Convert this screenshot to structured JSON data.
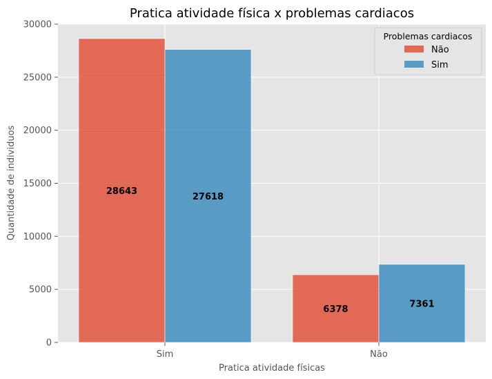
{
  "chart_data": {
    "type": "bar",
    "title": "Pratica atividade física x problemas cardiacos",
    "xlabel": "Pratica atividade físicas",
    "ylabel": "Quantidade de individuos",
    "categories": [
      "Sim",
      "Não"
    ],
    "series": [
      {
        "name": "Não",
        "values": [
          28643,
          6378
        ],
        "color": "#E24A33"
      },
      {
        "name": "Sim",
        "values": [
          27618,
          7361
        ],
        "color": "#348ABD"
      }
    ],
    "ylim": [
      0,
      30000
    ],
    "yticks": [
      0,
      5000,
      10000,
      15000,
      20000,
      25000,
      30000
    ],
    "grid": true,
    "legend": {
      "title": "Problemas cardiacos",
      "placement": "top-right"
    },
    "background": "#E5E5E5"
  }
}
